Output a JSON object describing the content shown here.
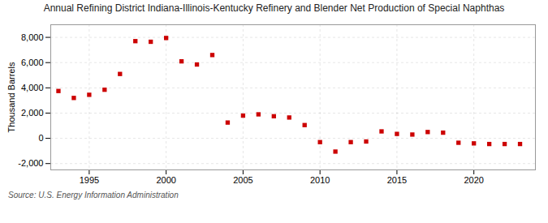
{
  "chart_data": {
    "type": "scatter",
    "title": "Annual Refining District Indiana-Illinois-Kentucky Refinery and Blender Net Production of Special Naphthas",
    "ylabel": "Thousand Barrels",
    "source": "Source: U.S. Energy Information Administration",
    "x": [
      1993,
      1994,
      1995,
      1996,
      1997,
      1998,
      1999,
      2000,
      2001,
      2002,
      2003,
      2004,
      2005,
      2006,
      2007,
      2008,
      2009,
      2010,
      2011,
      2012,
      2013,
      2014,
      2015,
      2016,
      2017,
      2018,
      2019,
      2020,
      2021,
      2022,
      2023
    ],
    "values": [
      3750,
      3200,
      3450,
      3850,
      5100,
      7700,
      7650,
      7950,
      6100,
      5850,
      6600,
      1250,
      1800,
      1900,
      1750,
      1650,
      1050,
      -300,
      -1050,
      -300,
      -250,
      550,
      350,
      300,
      500,
      450,
      -350,
      -400,
      -450,
      -450,
      -450
    ],
    "color": "#cc0000",
    "marker": "square",
    "xlim": [
      1992.5,
      2024
    ],
    "xticks": [
      1995,
      2000,
      2005,
      2010,
      2015,
      2020
    ],
    "ylim": [
      -2500,
      9000
    ],
    "yticks": [
      {
        "value": -2000,
        "label": "-2,000"
      },
      0,
      {
        "value": 2000,
        "label": "2,000"
      },
      {
        "value": 4000,
        "label": "4,000"
      },
      {
        "value": 6000,
        "label": "6,000"
      },
      {
        "value": 8000,
        "label": "8,000"
      }
    ],
    "grid": true
  }
}
